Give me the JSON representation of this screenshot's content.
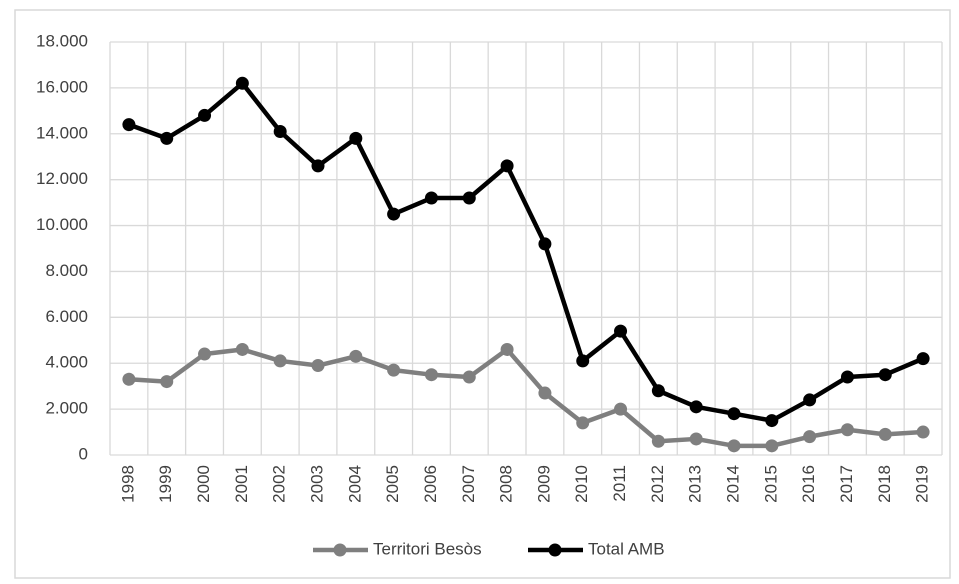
{
  "chart_data": {
    "type": "line",
    "categories": [
      "1998",
      "1999",
      "2000",
      "2001",
      "2002",
      "2003",
      "2004",
      "2005",
      "2006",
      "2007",
      "2008",
      "2009",
      "2010",
      "2011",
      "2012",
      "2013",
      "2014",
      "2015",
      "2016",
      "2017",
      "2018",
      "2019"
    ],
    "series": [
      {
        "name": "Territori Besòs",
        "color": "#7f7f7f",
        "values": [
          3300,
          3200,
          4400,
          4600,
          4100,
          3900,
          4300,
          3700,
          3500,
          3400,
          4600,
          2700,
          1400,
          2000,
          600,
          700,
          400,
          400,
          800,
          1100,
          900,
          1000
        ]
      },
      {
        "name": "Total AMB",
        "color": "#000000",
        "values": [
          14400,
          13800,
          14800,
          16200,
          14100,
          12600,
          13800,
          10500,
          11200,
          11200,
          12600,
          9200,
          4100,
          5400,
          2800,
          2100,
          1800,
          1500,
          2400,
          3400,
          3500,
          4200
        ]
      }
    ],
    "ylim": [
      0,
      18000
    ],
    "yticks": [
      0,
      {
        "value": 2000,
        "label": "2.000"
      },
      {
        "value": 4000,
        "label": "4.000"
      },
      {
        "value": 6000,
        "label": "6.000"
      },
      {
        "value": 8000,
        "label": "8.000"
      },
      {
        "value": 10000,
        "label": "10.000"
      },
      {
        "value": 12000,
        "label": "12.000"
      },
      {
        "value": 14000,
        "label": "14.000"
      },
      {
        "value": 16000,
        "label": "16.000"
      },
      {
        "value": 18000,
        "label": "18.000"
      }
    ],
    "grid": true,
    "legend": "bottom"
  }
}
